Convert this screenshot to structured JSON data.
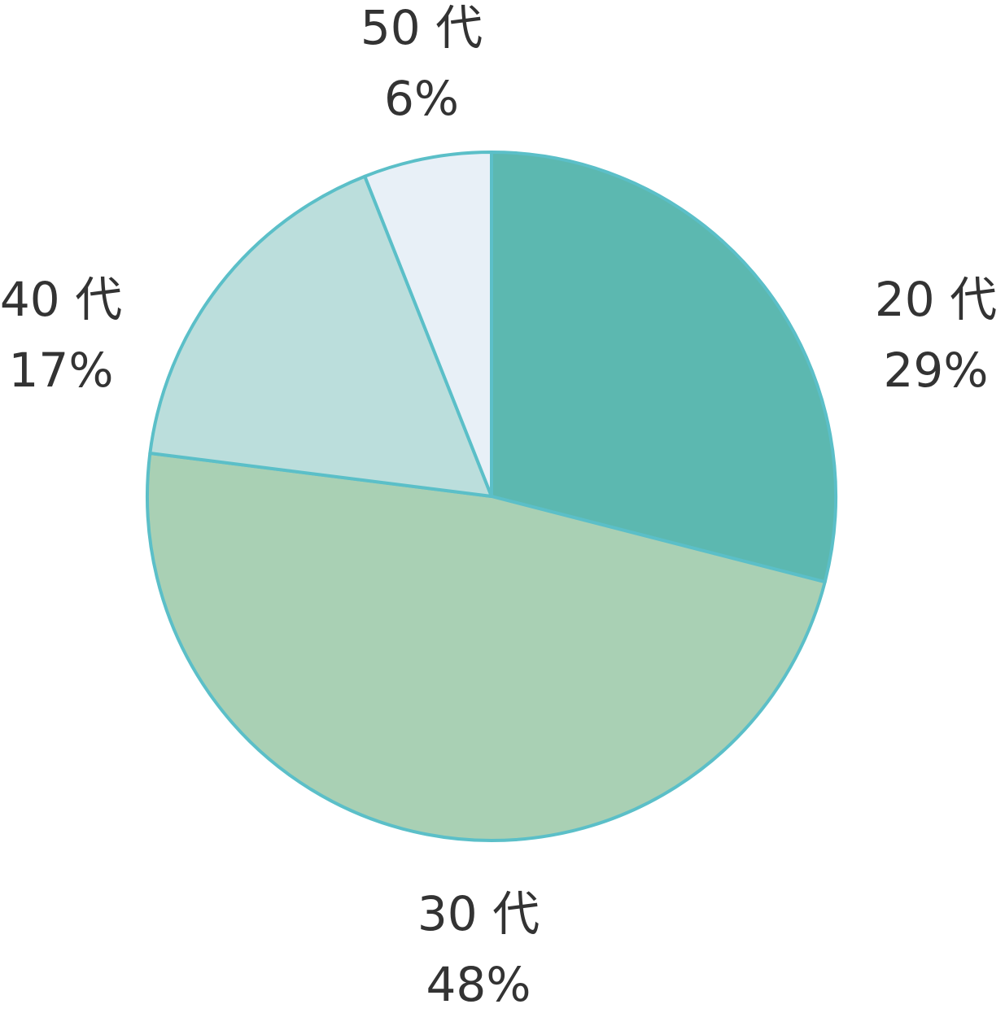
{
  "chart_data": {
    "type": "pie",
    "categories": [
      "20 代",
      "30 代",
      "40 代",
      "50 代"
    ],
    "values": [
      29,
      48,
      17,
      6
    ],
    "value_labels": [
      "29%",
      "48%",
      "17%",
      "6%"
    ],
    "colors": [
      "#5cb8b0",
      "#a9d0b4",
      "#bbdedc",
      "#e8f0f7"
    ],
    "edge_color": "#5bbfc8"
  }
}
